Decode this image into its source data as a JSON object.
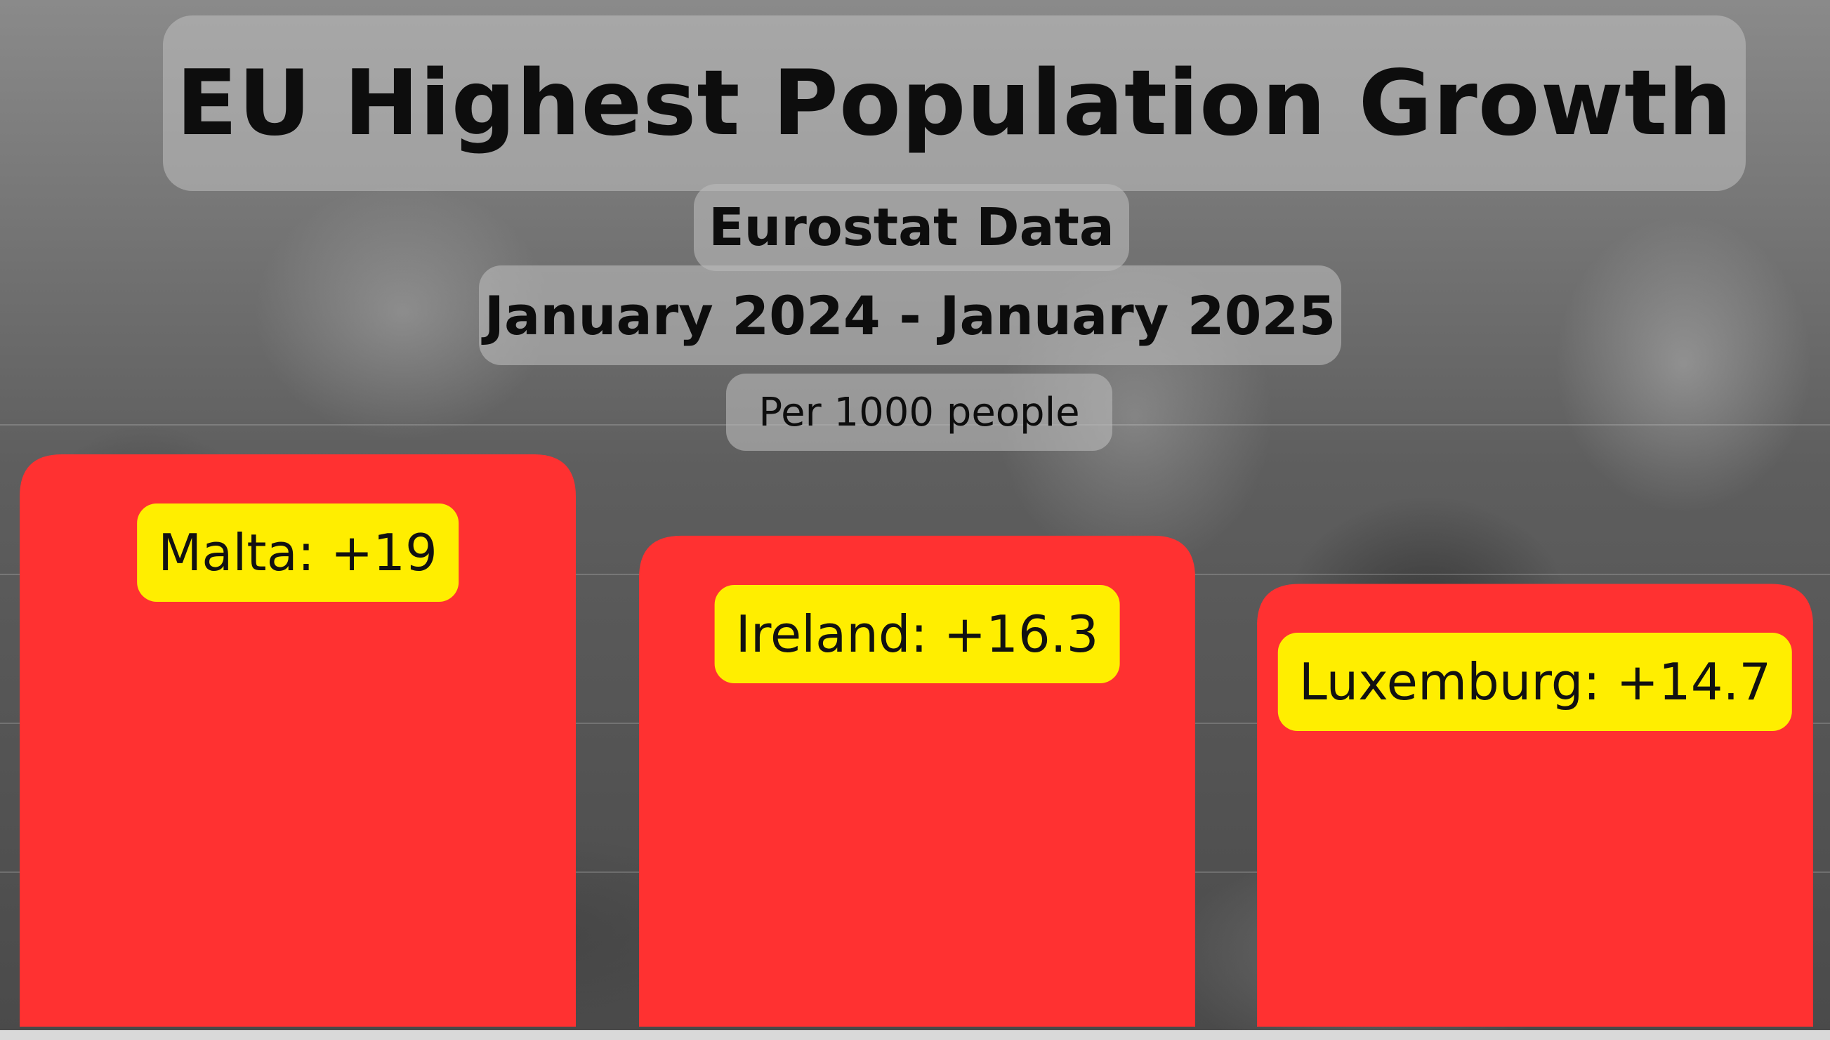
{
  "title": "EU Highest Population Growth",
  "source": "Eurostat Data",
  "period": "January 2024 - January 2025",
  "unit": "Per 1000 people",
  "colors": {
    "bar": "#ff3131",
    "label_background": "#ffee00",
    "pill_background": "#b9b9b9"
  },
  "chart_data": {
    "type": "bar",
    "title": "EU Highest Population Growth",
    "subtitle": "Eurostat Data",
    "categories": [
      "Malta",
      "Ireland",
      "Luxemburg"
    ],
    "values": [
      19,
      16.3,
      14.7
    ],
    "data_labels": [
      "Malta: +19",
      "Ireland: +16.3",
      "Luxemburg: +14.7"
    ],
    "xlabel": "",
    "ylabel": "",
    "grid": true,
    "legend": "none"
  }
}
